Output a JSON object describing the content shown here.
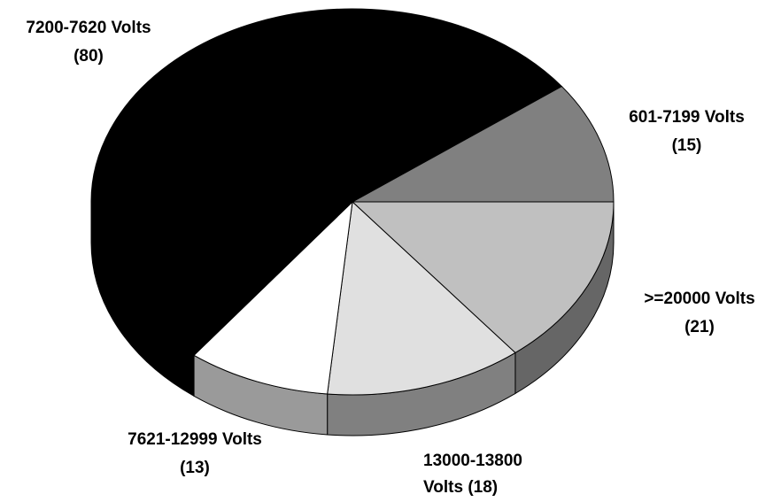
{
  "chart_data": {
    "type": "pie3d",
    "categories": [
      ">=20000 Volts",
      "13000-13800 Volts",
      "7621-12999 Volts",
      "7200-7620 Volts",
      "601-7199 Volts"
    ],
    "values": [
      21,
      18,
      13,
      80,
      15
    ],
    "value_labels": [
      "(21)",
      "(18)",
      "(13)",
      "(80)",
      "(15)"
    ],
    "colors": [
      "#c0c0c0",
      "#e0e0e0",
      "#ffffff",
      "#000000",
      "#808080"
    ],
    "side_colors": [
      "#666666",
      "#808080",
      "#9a9a9a",
      "#000000",
      "#555555"
    ]
  }
}
